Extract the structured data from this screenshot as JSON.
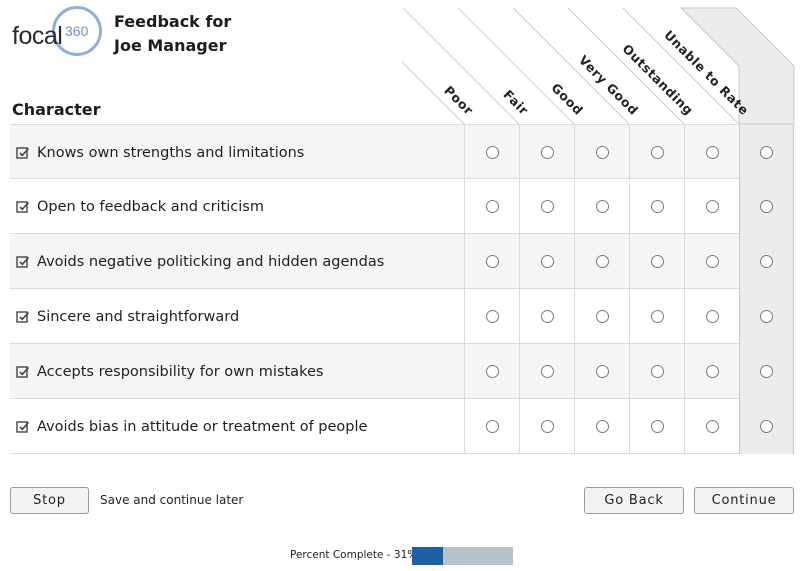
{
  "logo": {
    "word": "focal",
    "number": "360"
  },
  "header": {
    "title_line1": "Feedback for",
    "title_line2": "Joe Manager"
  },
  "section": {
    "title": "Character"
  },
  "columns": [
    "Poor",
    "Fair",
    "Good",
    "Very Good",
    "Outstanding",
    "Unable to Rate"
  ],
  "questions": [
    "Knows own strengths and limitations",
    "Open to feedback and criticism",
    "Avoids negative politicking and hidden agendas",
    "Sincere and straightforward",
    "Accepts responsibility for own mistakes",
    "Avoids bias in attitude or treatment of people"
  ],
  "footer": {
    "stop_label": "Stop",
    "save_later_label": "Save and continue later",
    "go_back_label": "Go Back",
    "continue_label": "Continue"
  },
  "progress": {
    "label": "Percent Complete - 31%",
    "value": 31
  },
  "colors": {
    "accent": "#1c5fa3",
    "logo_ring": "#8fb1d6",
    "track": "#b6c2c9"
  }
}
